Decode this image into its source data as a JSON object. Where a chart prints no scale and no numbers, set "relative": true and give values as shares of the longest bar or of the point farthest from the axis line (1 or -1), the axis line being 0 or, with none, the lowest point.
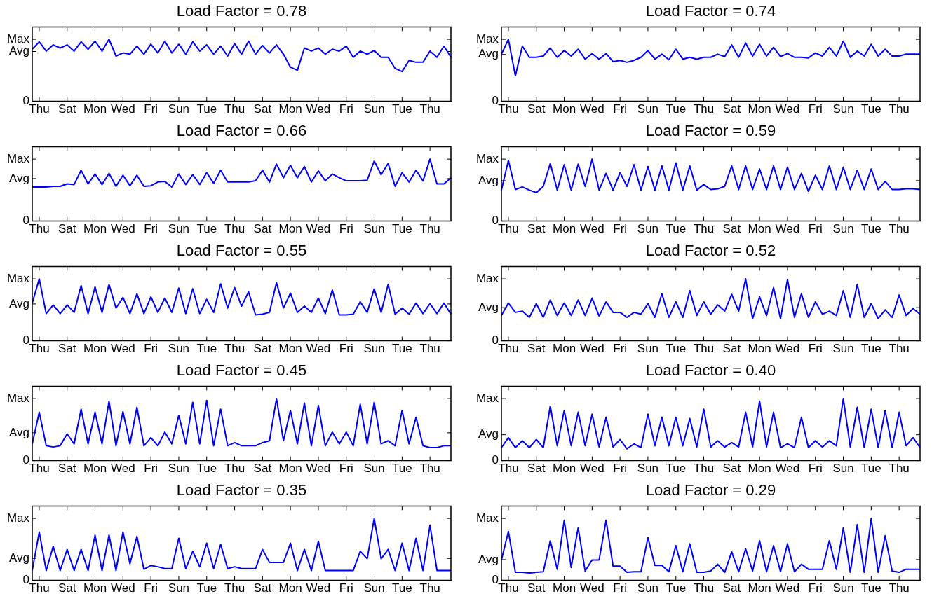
{
  "chart_data": [
    {
      "type": "line",
      "title": "Load Factor = 0.78",
      "relative": true,
      "categories": [
        null,
        "Thu",
        null,
        null,
        null,
        "Sat",
        null,
        null,
        null,
        "Mon",
        null,
        null,
        null,
        "Wed",
        null,
        null,
        null,
        "Fri",
        null,
        null,
        null,
        "Sun",
        null,
        null,
        null,
        "Tue",
        null,
        null,
        null,
        "Thu",
        null,
        null,
        null,
        "Sat",
        null,
        null,
        null,
        "Mon",
        null,
        null,
        null,
        "Wed",
        null,
        null,
        null,
        "Fri",
        null,
        null,
        null,
        "Sun",
        null,
        null,
        null,
        "Tue",
        null,
        null,
        null,
        "Thu",
        null,
        null,
        null
      ],
      "annotations": [
        "Max",
        "Avg",
        "0"
      ],
      "series": [
        {
          "color": "#0000ff",
          "values": [
            0.84,
            0.96,
            0.81,
            0.91,
            0.86,
            0.91,
            0.81,
            0.96,
            0.84,
            0.97,
            0.81,
            1,
            0.73,
            0.78,
            0.76,
            0.89,
            0.76,
            0.92,
            0.78,
            0.97,
            0.78,
            0.92,
            0.76,
            0.96,
            0.81,
            0.91,
            0.76,
            0.89,
            0.73,
            0.93,
            0.76,
            0.97,
            0.76,
            0.9,
            0.78,
            0.91,
            0.76,
            0.55,
            0.5,
            0.86,
            0.81,
            0.86,
            0.76,
            0.84,
            0.81,
            0.89,
            0.71,
            0.81,
            0.76,
            0.82,
            0.71,
            0.71,
            0.53,
            0.48,
            0.66,
            0.63,
            0.63,
            0.81,
            0.71,
            0.89,
            0.71
          ]
        }
      ]
    },
    {
      "type": "line",
      "title": "Load Factor = 0.74",
      "relative": true,
      "categories": [
        null,
        "Thu",
        null,
        null,
        null,
        "Sat",
        null,
        null,
        null,
        "Mon",
        null,
        null,
        null,
        "Wed",
        null,
        null,
        null,
        "Fri",
        null,
        null,
        null,
        "Sun",
        null,
        null,
        null,
        "Tue",
        null,
        null,
        null,
        "Thu",
        null,
        null,
        null,
        "Sat",
        null,
        null,
        null,
        "Mon",
        null,
        null,
        null,
        "Wed",
        null,
        null,
        null,
        "Fri",
        null,
        null,
        null,
        "Sun",
        null,
        null,
        null,
        "Tue",
        null,
        null,
        null,
        "Thu",
        null,
        null,
        null
      ],
      "annotations": [
        "Max",
        "Avg",
        "0"
      ],
      "series": [
        {
          "color": "#0000ff",
          "values": [
            0.76,
            1,
            0.41,
            0.89,
            0.71,
            0.71,
            0.73,
            0.86,
            0.71,
            0.82,
            0.73,
            0.84,
            0.68,
            0.77,
            0.68,
            0.77,
            0.64,
            0.66,
            0.63,
            0.66,
            0.71,
            0.82,
            0.68,
            0.76,
            0.67,
            0.84,
            0.68,
            0.71,
            0.68,
            0.71,
            0.71,
            0.76,
            0.72,
            0.91,
            0.71,
            0.94,
            0.73,
            0.92,
            0.73,
            0.87,
            0.72,
            0.77,
            0.71,
            0.71,
            0.7,
            0.78,
            0.73,
            0.87,
            0.73,
            0.97,
            0.71,
            0.81,
            0.73,
            0.92,
            0.73,
            0.84,
            0.73,
            0.73,
            0.76,
            0.76,
            0.76
          ]
        }
      ]
    },
    {
      "type": "line",
      "title": "Load Factor = 0.66",
      "relative": true,
      "categories": [
        null,
        "Thu",
        null,
        null,
        null,
        "Sat",
        null,
        null,
        null,
        "Mon",
        null,
        null,
        null,
        "Wed",
        null,
        null,
        null,
        "Fri",
        null,
        null,
        null,
        "Sun",
        null,
        null,
        null,
        "Tue",
        null,
        null,
        null,
        "Thu",
        null,
        null,
        null,
        "Sat",
        null,
        null,
        null,
        "Mon",
        null,
        null,
        null,
        "Wed",
        null,
        null,
        null,
        "Fri",
        null,
        null,
        null,
        "Sun",
        null,
        null,
        null,
        "Tue",
        null,
        null,
        null,
        "Thu",
        null,
        null,
        null
      ],
      "annotations": [
        "Max",
        "Avg",
        "0"
      ],
      "series": [
        {
          "color": "#0000ff",
          "values": [
            0.55,
            0.55,
            0.55,
            0.56,
            0.56,
            0.6,
            0.59,
            0.82,
            0.6,
            0.76,
            0.59,
            0.77,
            0.56,
            0.74,
            0.57,
            0.74,
            0.56,
            0.57,
            0.63,
            0.64,
            0.55,
            0.76,
            0.59,
            0.75,
            0.59,
            0.78,
            0.61,
            0.82,
            0.63,
            0.63,
            0.63,
            0.63,
            0.65,
            0.82,
            0.63,
            0.92,
            0.7,
            0.9,
            0.7,
            0.88,
            0.63,
            0.81,
            0.65,
            0.76,
            0.7,
            0.65,
            0.65,
            0.65,
            0.66,
            0.97,
            0.75,
            0.93,
            0.56,
            0.78,
            0.63,
            0.82,
            0.65,
            1,
            0.6,
            0.6,
            0.7
          ]
        }
      ]
    },
    {
      "type": "line",
      "title": "Load Factor = 0.59",
      "relative": true,
      "categories": [
        null,
        "Thu",
        null,
        null,
        null,
        "Sat",
        null,
        null,
        null,
        "Mon",
        null,
        null,
        null,
        "Wed",
        null,
        null,
        null,
        "Fri",
        null,
        null,
        null,
        "Sun",
        null,
        null,
        null,
        "Tue",
        null,
        null,
        null,
        "Thu",
        null,
        null,
        null,
        "Sat",
        null,
        null,
        null,
        "Mon",
        null,
        null,
        null,
        "Wed",
        null,
        null,
        null,
        "Fri",
        null,
        null,
        null,
        "Sun",
        null,
        null,
        null,
        "Tue",
        null,
        null,
        null,
        "Thu",
        null,
        null,
        null
      ],
      "annotations": [
        "Max",
        "Avg",
        "0"
      ],
      "series": [
        {
          "color": "#0000ff",
          "values": [
            0.5,
            0.98,
            0.51,
            0.55,
            0.5,
            0.46,
            0.56,
            0.93,
            0.5,
            0.91,
            0.5,
            0.92,
            0.56,
            1,
            0.5,
            0.77,
            0.5,
            0.78,
            0.56,
            0.91,
            0.5,
            0.88,
            0.5,
            0.89,
            0.5,
            0.94,
            0.5,
            0.89,
            0.5,
            0.59,
            0.51,
            0.52,
            0.56,
            0.89,
            0.51,
            0.89,
            0.51,
            0.84,
            0.51,
            0.89,
            0.51,
            0.87,
            0.51,
            0.77,
            0.48,
            0.74,
            0.51,
            0.89,
            0.51,
            0.87,
            0.51,
            0.82,
            0.51,
            0.84,
            0.51,
            0.64,
            0.51,
            0.51,
            0.52,
            0.52,
            0.51
          ]
        }
      ]
    },
    {
      "type": "line",
      "title": "Load Factor = 0.55",
      "relative": true,
      "categories": [
        null,
        "Thu",
        null,
        null,
        null,
        "Sat",
        null,
        null,
        null,
        "Mon",
        null,
        null,
        null,
        "Wed",
        null,
        null,
        null,
        "Fri",
        null,
        null,
        null,
        "Sun",
        null,
        null,
        null,
        "Tue",
        null,
        null,
        null,
        "Thu",
        null,
        null,
        null,
        "Sat",
        null,
        null,
        null,
        "Mon",
        null,
        null,
        null,
        "Wed",
        null,
        null,
        null,
        "Fri",
        null,
        null,
        null,
        "Sun",
        null,
        null,
        null,
        "Tue",
        null,
        null,
        null,
        "Thu",
        null,
        null,
        null
      ],
      "annotations": [
        "Max",
        "Avg",
        "0"
      ],
      "series": [
        {
          "color": "#0000ff",
          "values": [
            0.61,
            1,
            0.44,
            0.58,
            0.44,
            0.58,
            0.46,
            0.89,
            0.44,
            0.87,
            0.46,
            0.91,
            0.53,
            0.7,
            0.44,
            0.76,
            0.44,
            0.71,
            0.46,
            0.69,
            0.46,
            0.85,
            0.44,
            0.84,
            0.44,
            0.67,
            0.46,
            0.92,
            0.53,
            0.86,
            0.56,
            0.79,
            0.42,
            0.43,
            0.46,
            0.94,
            0.53,
            0.77,
            0.46,
            0.56,
            0.46,
            0.69,
            0.44,
            0.82,
            0.42,
            0.42,
            0.43,
            0.63,
            0.46,
            0.84,
            0.46,
            0.91,
            0.43,
            0.53,
            0.43,
            0.61,
            0.44,
            0.6,
            0.44,
            0.61,
            0.43
          ]
        }
      ]
    },
    {
      "type": "line",
      "title": "Load Factor = 0.52",
      "relative": true,
      "categories": [
        null,
        "Thu",
        null,
        null,
        null,
        "Sat",
        null,
        null,
        null,
        "Mon",
        null,
        null,
        null,
        "Wed",
        null,
        null,
        null,
        "Fri",
        null,
        null,
        null,
        "Sun",
        null,
        null,
        null,
        "Tue",
        null,
        null,
        null,
        "Thu",
        null,
        null,
        null,
        "Sat",
        null,
        null,
        null,
        "Mon",
        null,
        null,
        null,
        "Wed",
        null,
        null,
        null,
        "Fri",
        null,
        null,
        null,
        "Sun",
        null,
        null,
        null,
        "Tue",
        null,
        null,
        null,
        "Thu",
        null,
        null,
        null
      ],
      "annotations": [
        "Max",
        "Avg",
        "0"
      ],
      "series": [
        {
          "color": "#0000ff",
          "values": [
            0.41,
            0.61,
            0.46,
            0.48,
            0.38,
            0.6,
            0.38,
            0.66,
            0.41,
            0.61,
            0.41,
            0.66,
            0.41,
            0.69,
            0.4,
            0.63,
            0.46,
            0.46,
            0.38,
            0.46,
            0.43,
            0.6,
            0.38,
            0.76,
            0.38,
            0.63,
            0.38,
            0.81,
            0.41,
            0.63,
            0.43,
            0.58,
            0.48,
            0.75,
            0.48,
            1,
            0.36,
            0.71,
            0.41,
            0.86,
            0.36,
            0.99,
            0.38,
            0.76,
            0.38,
            0.63,
            0.43,
            0.48,
            0.41,
            0.81,
            0.38,
            0.91,
            0.38,
            0.6,
            0.36,
            0.5,
            0.38,
            0.74,
            0.41,
            0.52,
            0.43
          ]
        }
      ]
    },
    {
      "type": "line",
      "title": "Load Factor = 0.45",
      "relative": true,
      "categories": [
        null,
        "Thu",
        null,
        null,
        null,
        "Sat",
        null,
        null,
        null,
        "Mon",
        null,
        null,
        null,
        "Wed",
        null,
        null,
        null,
        "Fri",
        null,
        null,
        null,
        "Sun",
        null,
        null,
        null,
        "Tue",
        null,
        null,
        null,
        "Thu",
        null,
        null,
        null,
        "Sat",
        null,
        null,
        null,
        "Mon",
        null,
        null,
        null,
        "Wed",
        null,
        null,
        null,
        "Fri",
        null,
        null,
        null,
        "Sun",
        null,
        null,
        null,
        "Tue",
        null,
        null,
        null,
        "Thu",
        null,
        null,
        null
      ],
      "annotations": [
        "Max",
        "Avg",
        "0"
      ],
      "series": [
        {
          "color": "#0000ff",
          "values": [
            0.27,
            0.78,
            0.24,
            0.22,
            0.24,
            0.43,
            0.27,
            0.83,
            0.27,
            0.78,
            0.27,
            0.96,
            0.24,
            0.79,
            0.27,
            0.86,
            0.24,
            0.37,
            0.24,
            0.46,
            0.27,
            0.73,
            0.27,
            0.94,
            0.27,
            0.97,
            0.24,
            0.83,
            0.24,
            0.29,
            0.24,
            0.24,
            0.24,
            0.29,
            0.32,
            1,
            0.32,
            0.81,
            0.27,
            0.93,
            0.24,
            0.89,
            0.24,
            0.46,
            0.27,
            0.46,
            0.24,
            0.91,
            0.27,
            0.94,
            0.27,
            0.32,
            0.24,
            0.81,
            0.27,
            0.7,
            0.24,
            0.21,
            0.21,
            0.24,
            0.24
          ]
        }
      ]
    },
    {
      "type": "line",
      "title": "Load Factor = 0.40",
      "relative": true,
      "categories": [
        null,
        "Thu",
        null,
        null,
        null,
        "Sat",
        null,
        null,
        null,
        "Mon",
        null,
        null,
        null,
        "Wed",
        null,
        null,
        null,
        "Fri",
        null,
        null,
        null,
        "Sun",
        null,
        null,
        null,
        "Tue",
        null,
        null,
        null,
        "Thu",
        null,
        null,
        null,
        "Sat",
        null,
        null,
        null,
        "Mon",
        null,
        null,
        null,
        "Wed",
        null,
        null,
        null,
        "Fri",
        null,
        null,
        null,
        "Sun",
        null,
        null,
        null,
        "Tue",
        null,
        null,
        null,
        "Thu",
        null,
        null,
        null
      ],
      "annotations": [
        "Max",
        "Avg",
        "0"
      ],
      "series": [
        {
          "color": "#0000ff",
          "values": [
            0.21,
            0.37,
            0.21,
            0.32,
            0.21,
            0.34,
            0.21,
            0.88,
            0.24,
            0.81,
            0.24,
            0.78,
            0.24,
            0.75,
            0.22,
            0.7,
            0.22,
            0.34,
            0.19,
            0.27,
            0.21,
            0.75,
            0.24,
            0.7,
            0.24,
            0.7,
            0.24,
            0.68,
            0.22,
            0.83,
            0.22,
            0.32,
            0.22,
            0.29,
            0.22,
            0.78,
            0.22,
            0.96,
            0.22,
            0.78,
            0.21,
            0.27,
            0.21,
            0.7,
            0.21,
            0.32,
            0.22,
            0.32,
            0.24,
            1,
            0.22,
            0.86,
            0.21,
            0.83,
            0.21,
            0.81,
            0.21,
            0.78,
            0.24,
            0.37,
            0.21
          ]
        }
      ]
    },
    {
      "type": "line",
      "title": "Load Factor = 0.35",
      "relative": true,
      "categories": [
        null,
        "Thu",
        null,
        null,
        null,
        "Sat",
        null,
        null,
        null,
        "Mon",
        null,
        null,
        null,
        "Wed",
        null,
        null,
        null,
        "Fri",
        null,
        null,
        null,
        "Sun",
        null,
        null,
        null,
        "Tue",
        null,
        null,
        null,
        "Thu",
        null,
        null,
        null,
        "Sat",
        null,
        null,
        null,
        "Mon",
        null,
        null,
        null,
        "Wed",
        null,
        null,
        null,
        "Fri",
        null,
        null,
        null,
        "Sun",
        null,
        null,
        null,
        "Tue",
        null,
        null,
        null,
        "Thu",
        null,
        null,
        null
      ],
      "annotations": [
        "Max",
        "Avg",
        "0"
      ],
      "series": [
        {
          "color": "#0000ff",
          "values": [
            0.16,
            0.78,
            0.16,
            0.55,
            0.16,
            0.5,
            0.16,
            0.5,
            0.16,
            0.73,
            0.16,
            0.73,
            0.16,
            0.78,
            0.27,
            0.71,
            0.18,
            0.24,
            0.22,
            0.19,
            0.19,
            0.68,
            0.19,
            0.47,
            0.22,
            0.6,
            0.19,
            0.58,
            0.19,
            0.22,
            0.19,
            0.19,
            0.19,
            0.5,
            0.29,
            0.29,
            0.29,
            0.6,
            0.16,
            0.5,
            0.16,
            0.63,
            0.16,
            0.16,
            0.16,
            0.16,
            0.16,
            0.47,
            0.35,
            1,
            0.35,
            0.5,
            0.16,
            0.6,
            0.16,
            0.68,
            0.16,
            0.89,
            0.16,
            0.16,
            0.16
          ]
        }
      ]
    },
    {
      "type": "line",
      "title": "Load Factor = 0.29",
      "relative": true,
      "categories": [
        null,
        "Thu",
        null,
        null,
        null,
        "Sat",
        null,
        null,
        null,
        "Mon",
        null,
        null,
        null,
        "Wed",
        null,
        null,
        null,
        "Fri",
        null,
        null,
        null,
        "Sun",
        null,
        null,
        null,
        "Tue",
        null,
        null,
        null,
        "Thu",
        null,
        null,
        null,
        "Sat",
        null,
        null,
        null,
        "Mon",
        null,
        null,
        null,
        "Wed",
        null,
        null,
        null,
        "Fri",
        null,
        null,
        null,
        "Sun",
        null,
        null,
        null,
        "Tue",
        null,
        null,
        null,
        "Thu",
        null,
        null,
        null
      ],
      "annotations": [
        "Max",
        "Avg",
        "0"
      ],
      "series": [
        {
          "color": "#0000ff",
          "values": [
            0.33,
            0.79,
            0.13,
            0.13,
            0.12,
            0.13,
            0.14,
            0.64,
            0.18,
            0.97,
            0.21,
            0.85,
            0.15,
            0.33,
            0.33,
            0.97,
            0.23,
            0.23,
            0.13,
            0.14,
            0.14,
            0.69,
            0.24,
            0.24,
            0.14,
            0.56,
            0.14,
            0.59,
            0.13,
            0.13,
            0.15,
            0.26,
            0.13,
            0.46,
            0.14,
            0.51,
            0.15,
            0.64,
            0.14,
            0.56,
            0.14,
            0.59,
            0.14,
            0.26,
            0.18,
            0.18,
            0.18,
            0.64,
            0.18,
            0.85,
            0.13,
            0.9,
            0.13,
            1,
            0.13,
            0.72,
            0.15,
            0.13,
            0.18,
            0.18,
            0.18
          ]
        }
      ]
    }
  ]
}
